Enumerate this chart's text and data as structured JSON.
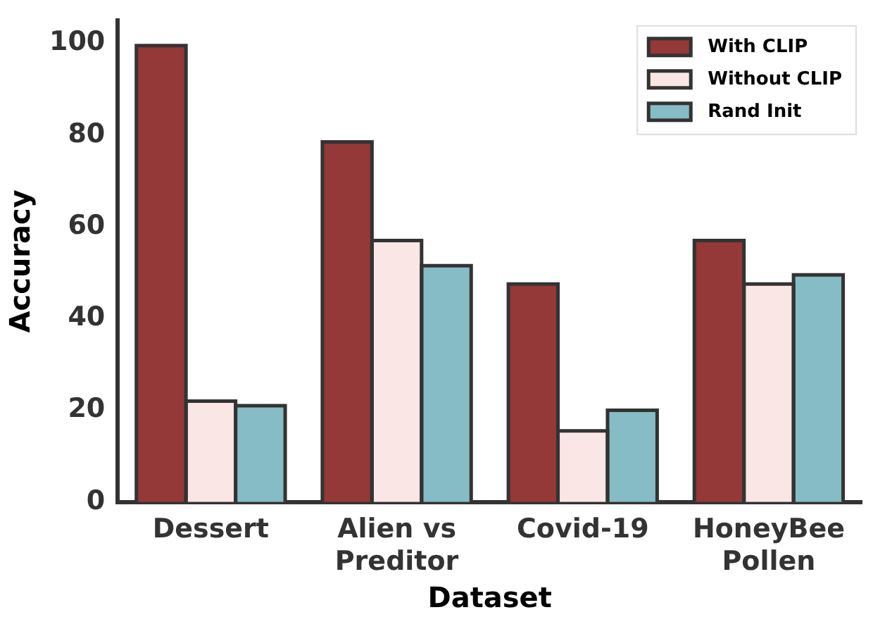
{
  "chart_data": {
    "type": "bar",
    "xlabel": "Dataset",
    "ylabel": "Accuracy",
    "categories": [
      "Dessert",
      "Alien vs\nPreditor",
      "Covid-19",
      "HoneyBee\nPollen"
    ],
    "series": [
      {
        "name": "With CLIP",
        "color": "#943838",
        "values": [
          99.5,
          78.5,
          47.5,
          57
        ]
      },
      {
        "name": "Without CLIP",
        "color": "#fbe6e6",
        "values": [
          22,
          57,
          15.5,
          47.5
        ]
      },
      {
        "name": "Rand Init",
        "color": "#86bcc6",
        "values": [
          21,
          51.5,
          20,
          49.5
        ]
      }
    ],
    "ylim": [
      0,
      105
    ],
    "yticks": [
      0,
      20,
      40,
      60,
      80,
      100
    ],
    "grid": false,
    "legend": "top right"
  }
}
